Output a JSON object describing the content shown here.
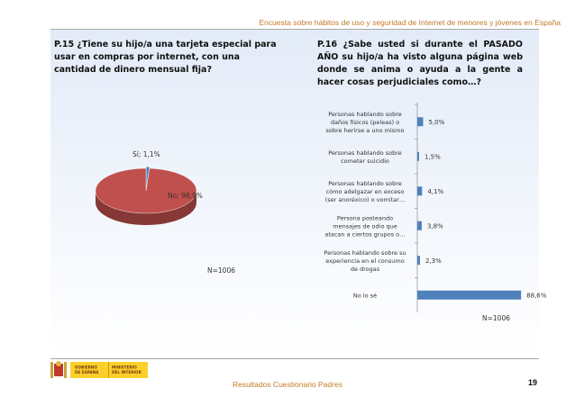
{
  "header": {
    "title": "Encuesta sobre hábitos de uso y seguridad de Internet de menores y jóvenes en España"
  },
  "left": {
    "question": "P.15 ¿Tiene su hijo/a una tarjeta especial para usar en compras por internet, con una cantidad de dinero mensual fija?",
    "n_label": "N=1006"
  },
  "right": {
    "question": "P.16 ¿Sabe usted si durante el PASADO AÑO su hijo/a ha visto alguna página web donde se anima o ayuda a la gente a hacer cosas perjudiciales como…?",
    "n_label": "N=1006"
  },
  "chart_data": [
    {
      "type": "pie",
      "slices": [
        {
          "label": "Sí; 1,1%",
          "value": 1.1,
          "color": "#4f81bd"
        },
        {
          "label": "No; 98,9%",
          "value": 98.9,
          "color": "#c0504d"
        }
      ]
    },
    {
      "type": "bar",
      "orientation": "horizontal",
      "categories": [
        [
          "Personas hablando sobre",
          "daños físicos (peleas) o",
          "sobre herirse a uno mismo"
        ],
        [
          "Personas hablando sobre",
          "cometer suicidio"
        ],
        [
          "Personas hablando sobre",
          "cómo adelgazar en exceso",
          "(ser anoréxico) o vomitar…"
        ],
        [
          "Persona posteando",
          "mensajes de odio que",
          "atacan a ciertos grupos o…"
        ],
        [
          "Personas hablando sobre su",
          "experiencia en el consumo",
          "de drogas"
        ],
        [
          "No lo sé"
        ]
      ],
      "values": [
        5.0,
        1.5,
        4.1,
        3.8,
        2.3,
        88.6
      ],
      "value_labels": [
        "5,0%",
        "1,5%",
        "4,1%",
        "3,8%",
        "2,3%",
        "88,6%"
      ],
      "color": "#4f81bd",
      "xlim": [
        0,
        100
      ]
    }
  ],
  "logo": {
    "left_text": [
      "GOBIERNO",
      "DE ESPAÑA"
    ],
    "right_text": [
      "MINISTERIO",
      "DEL INTERIOR"
    ]
  },
  "footer": {
    "title": "Resultados Cuestionario Padres",
    "page": "19"
  }
}
